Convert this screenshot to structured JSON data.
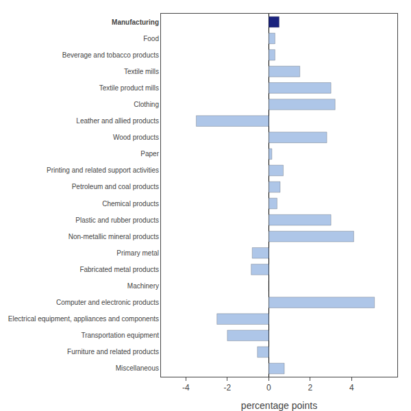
{
  "chart_data": {
    "type": "bar",
    "orientation": "horizontal",
    "categories": [
      "Manufacturing",
      "Food",
      "Beverage and tobacco products",
      "Textile mills",
      "Textile product mills",
      "Clothing",
      "Leather and allied products",
      "Wood products",
      "Paper",
      "Printing and related support activities",
      "Petroleum and coal products",
      "Chemical products",
      "Plastic and rubber products",
      "Non-metallic mineral products",
      "Primary metal",
      "Fabricated metal products",
      "Machinery",
      "Computer and electronic products",
      "Electrical equipment, appliances and components",
      "Transportation equipment",
      "Furniture and related products",
      "Miscellaneous"
    ],
    "values": [
      0.5,
      0.3,
      0.3,
      1.5,
      3.0,
      3.2,
      -3.5,
      2.8,
      0.15,
      0.7,
      0.55,
      0.4,
      3.0,
      4.1,
      -0.8,
      -0.85,
      0.0,
      5.1,
      -2.5,
      -2.0,
      -0.55,
      0.75
    ],
    "colors": [
      "#1a237e",
      "#aec6e8",
      "#aec6e8",
      "#aec6e8",
      "#aec6e8",
      "#aec6e8",
      "#aec6e8",
      "#aec6e8",
      "#aec6e8",
      "#aec6e8",
      "#aec6e8",
      "#aec6e8",
      "#aec6e8",
      "#aec6e8",
      "#aec6e8",
      "#aec6e8",
      "#aec6e8",
      "#aec6e8",
      "#aec6e8",
      "#aec6e8",
      "#aec6e8",
      "#aec6e8"
    ],
    "xlabel": "percentage points",
    "xlim": [
      -5.2,
      6.2
    ],
    "xticks": [
      -4,
      -2,
      0,
      2,
      4
    ],
    "grid": false
  }
}
